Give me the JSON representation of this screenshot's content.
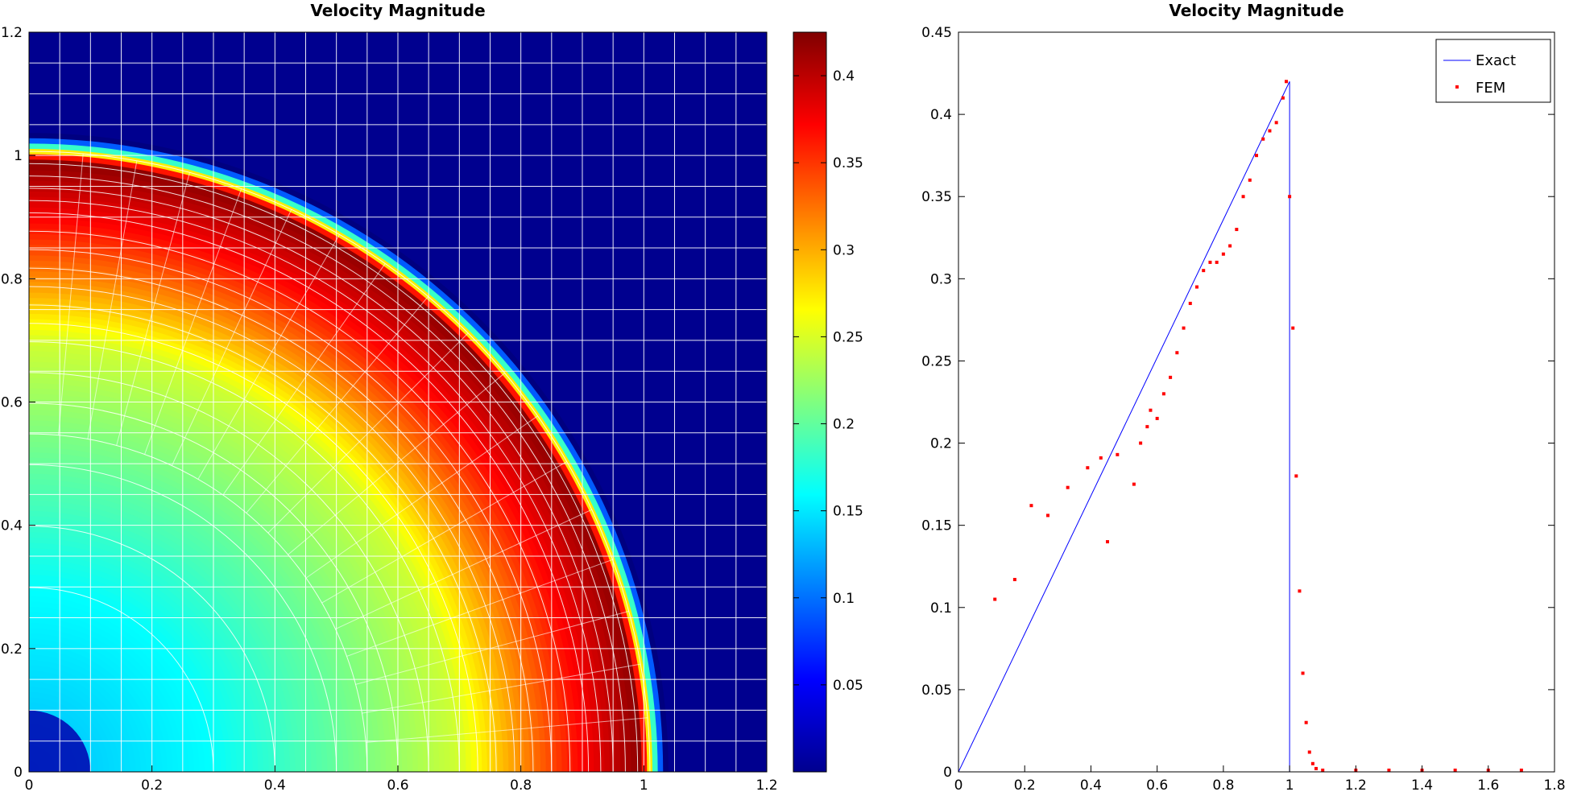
{
  "chart_data": [
    {
      "type": "heatmap",
      "title": "Velocity Magnitude",
      "xlim": [
        0,
        1.2
      ],
      "ylim": [
        0,
        1.2
      ],
      "xticks": [
        "0",
        "0.2",
        "0.4",
        "0.6",
        "0.8",
        "1",
        "1.2"
      ],
      "yticks": [
        "0",
        "0.2",
        "0.4",
        "0.6",
        "0.8",
        "1",
        "1.2"
      ],
      "colormap": "jet",
      "colorbar": {
        "range": [
          0,
          0.425
        ],
        "ticks": [
          "0.05",
          "0.1",
          "0.15",
          "0.2",
          "0.25",
          "0.3",
          "0.35",
          "0.4"
        ]
      },
      "field": {
        "front_radius": 1.015,
        "radial_profile": [
          [
            0.0,
            0.13
          ],
          [
            0.3,
            0.16
          ],
          [
            0.5,
            0.2
          ],
          [
            0.7,
            0.245
          ],
          [
            0.8,
            0.31
          ],
          [
            0.9,
            0.37
          ],
          [
            1.0,
            0.42
          ],
          [
            1.04,
            0.0
          ]
        ],
        "origin_value": 0.02,
        "outside_value": 0.0
      },
      "mesh": {
        "outer_grid_spacing": 0.05,
        "ring_radii": [
          0.3,
          0.4,
          0.5,
          0.55,
          0.6,
          0.65,
          0.7,
          0.73,
          0.76,
          0.79,
          0.82,
          0.85,
          0.88,
          0.91,
          0.93,
          0.95,
          0.97,
          0.99,
          1.01
        ],
        "grid_color": "#ffffff"
      }
    },
    {
      "type": "line+scatter",
      "title": "Velocity Magnitude",
      "xlim": [
        0,
        1.8
      ],
      "ylim": [
        0,
        0.45
      ],
      "xticks": [
        "0",
        "0.2",
        "0.4",
        "0.6",
        "0.8",
        "1",
        "1.2",
        "1.4",
        "1.6",
        "1.8"
      ],
      "yticks": [
        "0",
        "0.05",
        "0.1",
        "0.15",
        "0.2",
        "0.25",
        "0.3",
        "0.35",
        "0.4",
        "0.45"
      ],
      "legend": {
        "placement": "top-right",
        "entries": [
          "Exact",
          "FEM"
        ]
      },
      "series": [
        {
          "name": "Exact",
          "kind": "line",
          "color": "#0000ff",
          "x": [
            0,
            1.0,
            1.0,
            1.8
          ],
          "y": [
            0,
            0.42,
            0,
            0
          ]
        },
        {
          "name": "FEM",
          "kind": "scatter",
          "color": "#ff0000",
          "x": [
            0.11,
            0.17,
            0.22,
            0.27,
            0.33,
            0.39,
            0.43,
            0.45,
            0.48,
            0.53,
            0.55,
            0.57,
            0.58,
            0.6,
            0.62,
            0.64,
            0.66,
            0.68,
            0.7,
            0.72,
            0.74,
            0.76,
            0.78,
            0.8,
            0.82,
            0.84,
            0.86,
            0.88,
            0.9,
            0.92,
            0.94,
            0.96,
            0.98,
            0.99,
            1.0,
            1.01,
            1.02,
            1.03,
            1.04,
            1.05,
            1.06,
            1.07,
            1.08,
            1.1,
            1.2,
            1.3,
            1.4,
            1.5,
            1.6,
            1.7
          ],
          "y": [
            0.105,
            0.117,
            0.162,
            0.156,
            0.173,
            0.185,
            0.191,
            0.14,
            0.193,
            0.175,
            0.2,
            0.21,
            0.22,
            0.215,
            0.23,
            0.24,
            0.255,
            0.27,
            0.285,
            0.295,
            0.305,
            0.31,
            0.31,
            0.315,
            0.32,
            0.33,
            0.35,
            0.36,
            0.375,
            0.385,
            0.39,
            0.395,
            0.41,
            0.42,
            0.35,
            0.27,
            0.18,
            0.11,
            0.06,
            0.03,
            0.012,
            0.005,
            0.002,
            0.001,
            0.001,
            0.001,
            0.001,
            0.001,
            0.001,
            0.001
          ]
        }
      ]
    }
  ]
}
